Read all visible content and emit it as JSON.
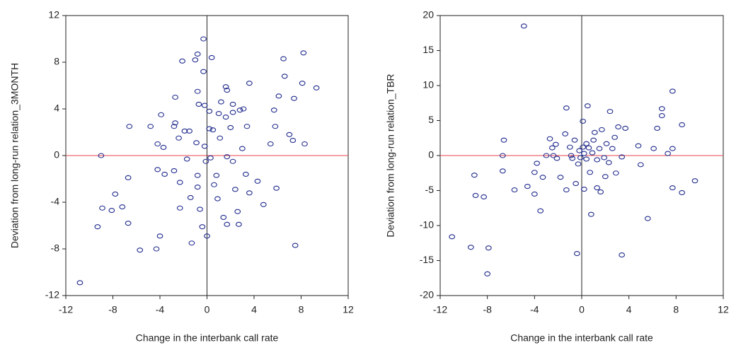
{
  "chart_data": [
    {
      "type": "scatter",
      "x_label": "Change in the interbank call rate",
      "y_label": "Deviation from long-run relation_3MONTH",
      "xlim": [
        -12,
        12
      ],
      "ylim": [
        -12,
        12
      ],
      "xticks": [
        -12,
        -8,
        -4,
        0,
        4,
        8,
        12
      ],
      "yticks": [
        -12,
        -8,
        -4,
        0,
        4,
        8,
        12
      ],
      "hline": {
        "value": 0,
        "color": "#e8454d"
      },
      "vline": {
        "value": 0,
        "color": "#222222"
      },
      "series": [
        {
          "color": "#1f2a8c",
          "x": [
            -10.8,
            -9.0,
            -8.9,
            -9.3,
            -8.1,
            -7.8,
            -7.2,
            -6.7,
            -6.6,
            -6.7,
            -5.7,
            -4.8,
            -4.3,
            -4.0,
            -4.2,
            -3.9,
            -4.2,
            -3.7,
            -3.6,
            -2.8,
            -2.7,
            -2.7,
            -2.4,
            -2.8,
            -2.3,
            -2.3,
            -2.1,
            -1.9,
            -1.5,
            -1.7,
            -1.4,
            -1.3,
            -1.0,
            -0.8,
            -0.8,
            -0.7,
            -0.9,
            -0.8,
            -0.8,
            -0.6,
            -0.4,
            -0.3,
            -0.3,
            -0.2,
            -0.2,
            -0.1,
            0,
            0.2,
            0.2,
            0.3,
            0.4,
            0.5,
            0.6,
            0.8,
            0.9,
            1.0,
            1.1,
            1.2,
            1.4,
            1.6,
            1.6,
            1.7,
            1.7,
            1.7,
            2.0,
            2.2,
            2.2,
            2.2,
            2.4,
            2.6,
            2.7,
            2.8,
            3.0,
            3.1,
            3.3,
            3.4,
            3.6,
            3.6,
            4.3,
            4.8,
            5.4,
            5.7,
            5.8,
            5.9,
            6.1,
            6.5,
            6.6,
            7.0,
            7.3,
            7.4,
            7.5,
            8.1,
            8.2,
            8.3,
            9.3
          ],
          "y": [
            -10.9,
            0,
            -4.5,
            -6.1,
            -4.7,
            -3.3,
            -4.4,
            -1.9,
            2.5,
            -5.8,
            -8.1,
            2.5,
            -8.0,
            -6.9,
            1.0,
            3.5,
            -1.2,
            0.7,
            -1.6,
            2.5,
            5.0,
            2.8,
            1.5,
            -1.3,
            -2.3,
            -4.5,
            8.1,
            2.1,
            2.1,
            -0.3,
            -3.6,
            -7.5,
            8.2,
            8.7,
            5.5,
            4.4,
            1.1,
            -1.7,
            -2.7,
            -4.6,
            -6.1,
            10,
            7.2,
            4.3,
            0.8,
            -0.5,
            -6.9,
            3.8,
            2.3,
            -0.2,
            8.4,
            2.2,
            -2.5,
            -1.7,
            -3.7,
            3.6,
            1.5,
            4.6,
            -5.3,
            3.3,
            5.9,
            5.6,
            -0.1,
            -5.9,
            2.4,
            4.4,
            3.7,
            -0.5,
            -2.9,
            -4.8,
            -5.9,
            3.9,
            0.6,
            4.0,
            -1.6,
            2.5,
            6.2,
            -3.2,
            -2.2,
            -4.2,
            1.0,
            3.9,
            2.5,
            -2.8,
            5.1,
            8.3,
            6.8,
            1.8,
            1.3,
            4.9,
            -7.7,
            6.2,
            8.8,
            1.0,
            5.8
          ]
        }
      ]
    },
    {
      "type": "scatter",
      "x_label": "Change in the interbank call rate",
      "y_label": "Deviation from long-run relation_TBR",
      "xlim": [
        -12,
        12
      ],
      "ylim": [
        -20,
        20
      ],
      "xticks": [
        -12,
        -8,
        -4,
        0,
        4,
        8,
        12
      ],
      "yticks": [
        -20,
        -15,
        -10,
        -5,
        0,
        5,
        10,
        15,
        20
      ],
      "hline": {
        "value": 0,
        "color": "#e8454d"
      },
      "vline": {
        "value": 0,
        "color": "#222222"
      },
      "series": [
        {
          "color": "#1f2a8c",
          "x": [
            -11,
            -9.4,
            -9.1,
            -9.0,
            -8.3,
            -7.9,
            -8.0,
            -6.6,
            -6.7,
            -6.7,
            -5.7,
            -4.9,
            -4.6,
            -4.0,
            -4.0,
            -3.8,
            -3.5,
            -3.3,
            -3.0,
            -2.7,
            -2.5,
            -2.4,
            -2.2,
            -2.1,
            -1.8,
            -1.4,
            -1.3,
            -1.3,
            -1.0,
            -0.9,
            -0.8,
            -0.6,
            -0.5,
            -0.4,
            -0.3,
            -0.2,
            -0.1,
            0.1,
            0.1,
            0.2,
            0.2,
            0.4,
            0.4,
            0.5,
            0.6,
            0.7,
            0.8,
            0.9,
            1.0,
            1.1,
            1.3,
            1.3,
            1.5,
            1.6,
            1.7,
            1.9,
            2.0,
            2.1,
            2.3,
            2.4,
            2.6,
            2.8,
            2.9,
            3.1,
            3.4,
            3.4,
            3.7,
            4.8,
            5.0,
            5.6,
            6.1,
            6.4,
            6.8,
            6.8,
            7.3,
            7.7,
            7.7,
            7.7,
            8.5,
            8.5,
            9.6
          ],
          "y": [
            -11.6,
            -13.1,
            -2.8,
            -5.7,
            -5.9,
            -13.2,
            -16.9,
            2.2,
            -2.2,
            0,
            -4.9,
            18.5,
            -4.4,
            -2.4,
            -5.5,
            -1.1,
            -7.9,
            -3.1,
            0,
            2.4,
            1.1,
            0,
            1.6,
            -0.4,
            -3.1,
            3.1,
            6.8,
            -4.9,
            1.2,
            0,
            -0.4,
            2.2,
            -4.0,
            -14.0,
            -1.2,
            0.7,
            -0.3,
            1.2,
            4.9,
            -4.8,
            0.3,
            1.7,
            -0.5,
            7.1,
            1.1,
            -2.4,
            -8.4,
            0.4,
            2.2,
            3.3,
            -0.6,
            -4.6,
            1.0,
            -5.2,
            3.7,
            -0.3,
            -3.0,
            1.7,
            -1.0,
            6.3,
            1.0,
            2.6,
            -2.5,
            4.1,
            -0.2,
            -14.2,
            3.9,
            1.4,
            -1.3,
            -9.0,
            1.0,
            3.9,
            6.7,
            5.7,
            0.3,
            9.2,
            1.0,
            -4.6,
            4.4,
            -5.3,
            -3.6
          ]
        }
      ]
    }
  ]
}
